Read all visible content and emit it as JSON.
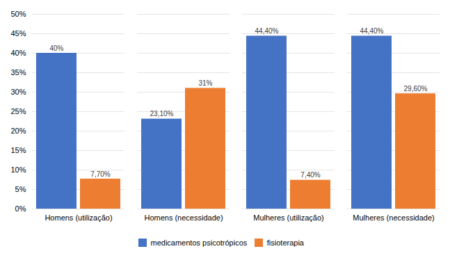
{
  "chart_data": {
    "type": "bar",
    "categories": [
      "Homens (utilização)",
      "Homens (necessidade)",
      "Mulheres (utilização)",
      "Mulheres (necessidade)"
    ],
    "series": [
      {
        "name": "medicamentos psicotrópicos",
        "color": "#4472C4",
        "values": [
          40.0,
          23.1,
          44.4,
          44.4
        ],
        "value_labels": [
          "40%",
          "23,10%",
          "44,40%",
          "44,40%"
        ]
      },
      {
        "name": "fisioterapia",
        "color": "#ED7D31",
        "values": [
          7.7,
          31.0,
          7.4,
          29.6
        ],
        "value_labels": [
          "7,70%",
          "31%",
          "7,40%",
          "29,60%"
        ]
      }
    ],
    "ylim": [
      0,
      50
    ],
    "yticks": [
      {
        "value": 0,
        "label": "0%"
      },
      {
        "value": 5,
        "label": "5%"
      },
      {
        "value": 10,
        "label": "10%"
      },
      {
        "value": 15,
        "label": "15%"
      },
      {
        "value": 20,
        "label": "20%"
      },
      {
        "value": 25,
        "label": "25%"
      },
      {
        "value": 30,
        "label": "30%"
      },
      {
        "value": 35,
        "label": "35%"
      },
      {
        "value": 40,
        "label": "40%"
      },
      {
        "value": 45,
        "label": "45%"
      },
      {
        "value": 50,
        "label": "50%"
      }
    ],
    "grid": true,
    "data_labels": true,
    "legend": "bottom"
  }
}
